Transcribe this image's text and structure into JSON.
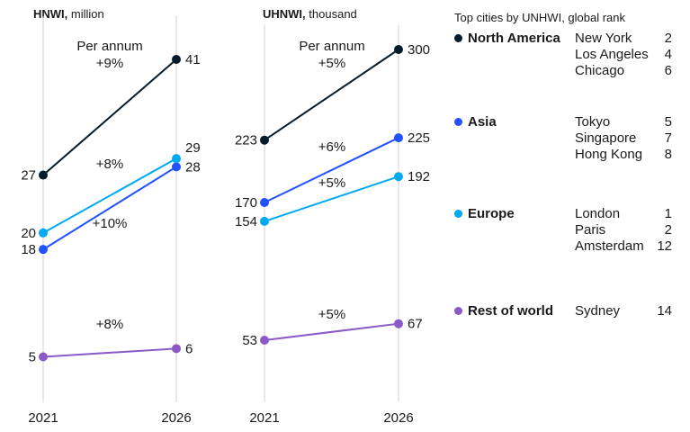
{
  "chart_data": [
    {
      "type": "line",
      "title_bold": "HNWI,",
      "title_rest": " million",
      "x": [
        "2021",
        "2026"
      ],
      "ylim": [
        0,
        45
      ],
      "grid": false,
      "series": [
        {
          "name": "North America",
          "color": "#051c2c",
          "values": [
            27,
            41
          ],
          "cagr": "+9%",
          "cagr_prefix": "Per annum"
        },
        {
          "name": "Asia",
          "color": "#2251ff",
          "values": [
            18,
            28
          ],
          "cagr": "+10%"
        },
        {
          "name": "Europe",
          "color": "#00a9f4",
          "values": [
            20,
            29
          ],
          "cagr": "+8%"
        },
        {
          "name": "Rest of world",
          "color": "#8c5ac8",
          "values": [
            5,
            6
          ],
          "cagr": "+8%"
        }
      ]
    },
    {
      "type": "line",
      "title_bold": "UHNWI,",
      "title_rest": " thousand",
      "x": [
        "2021",
        "2026"
      ],
      "ylim": [
        0,
        320
      ],
      "grid": false,
      "series": [
        {
          "name": "North America",
          "color": "#051c2c",
          "values": [
            223,
            300
          ],
          "cagr": "+5%",
          "cagr_prefix": "Per annum"
        },
        {
          "name": "Asia",
          "color": "#2251ff",
          "values": [
            170,
            225
          ],
          "cagr": "+6%"
        },
        {
          "name": "Europe",
          "color": "#00a9f4",
          "values": [
            154,
            192
          ],
          "cagr": "+5%"
        },
        {
          "name": "Rest of world",
          "color": "#8c5ac8",
          "values": [
            53,
            67
          ],
          "cagr": "+5%"
        }
      ]
    }
  ],
  "legend": {
    "title": "Top cities by UNHWI, global rank",
    "regions": [
      {
        "name": "North America",
        "color": "#051c2c",
        "cities": [
          {
            "name": "New York",
            "rank": "2"
          },
          {
            "name": "Los Angeles",
            "rank": "4"
          },
          {
            "name": "Chicago",
            "rank": "6"
          }
        ]
      },
      {
        "name": "Asia",
        "color": "#2251ff",
        "cities": [
          {
            "name": "Tokyo",
            "rank": "5"
          },
          {
            "name": "Singapore",
            "rank": "7"
          },
          {
            "name": "Hong Kong",
            "rank": "8"
          }
        ]
      },
      {
        "name": "Europe",
        "color": "#00a9f4",
        "cities": [
          {
            "name": "London",
            "rank": "1"
          },
          {
            "name": "Paris",
            "rank": "2"
          },
          {
            "name": "Amsterdam",
            "rank": "12"
          }
        ]
      },
      {
        "name": "Rest of world",
        "color": "#8c5ac8",
        "cities": [
          {
            "name": "Sydney",
            "rank": "14"
          }
        ]
      }
    ]
  }
}
